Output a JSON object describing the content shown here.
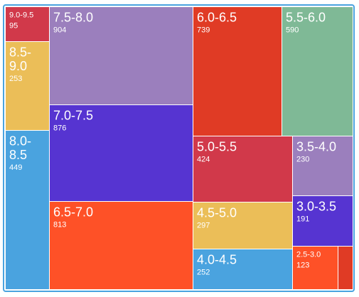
{
  "chart_data": {
    "type": "treemap",
    "items": [
      {
        "label": "7.5-8.0",
        "value": 904,
        "color": "#9b7fbd"
      },
      {
        "label": "7.0-7.5",
        "value": 876,
        "color": "#5634d1"
      },
      {
        "label": "6.5-7.0",
        "value": 813,
        "color": "#fe5127"
      },
      {
        "label": "6.0-6.5",
        "value": 739,
        "color": "#e03b25"
      },
      {
        "label": "5.5-6.0",
        "value": 590,
        "color": "#7fb996"
      },
      {
        "label": "8.0-8.5",
        "value": 449,
        "color": "#4aa3df"
      },
      {
        "label": "5.0-5.5",
        "value": 424,
        "color": "#d1394a"
      },
      {
        "label": "4.5-5.0",
        "value": 297,
        "color": "#ebbe58"
      },
      {
        "label": "8.5-9.0",
        "value": 253,
        "color": "#ebbe58"
      },
      {
        "label": "4.0-4.5",
        "value": 252,
        "color": "#4aa3df"
      },
      {
        "label": "3.5-4.0",
        "value": 230,
        "color": "#9b7fbd"
      },
      {
        "label": "3.0-3.5",
        "value": 191,
        "color": "#5634d1"
      },
      {
        "label": "2.5-3.0",
        "value": 123,
        "color": "#fe5127"
      },
      {
        "label": "9.0-9.5",
        "value": 95,
        "color": "#d1394a"
      }
    ]
  }
}
